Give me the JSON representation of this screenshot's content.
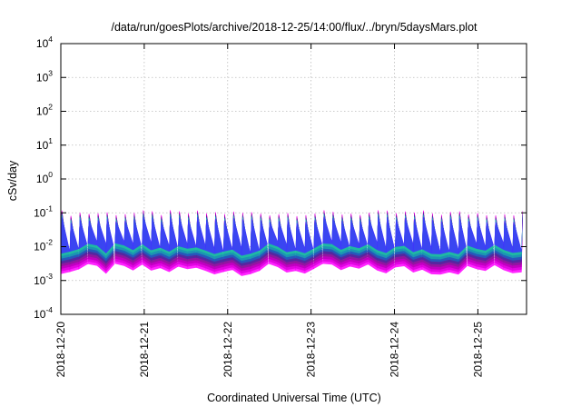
{
  "chart_data": {
    "type": "area",
    "title": "/data/run/goesPlots/archive/2018-12-25/14:00/flux/../bryn/5daysMars.plot",
    "xlabel": "Coordinated Universal Time (UTC)",
    "ylabel": "cSv/day",
    "yscale": "log",
    "ylim": [
      0.0001,
      10000
    ],
    "xlim": [
      "2018-12-20T00:00",
      "2018-12-25T14:00"
    ],
    "grid": true,
    "x_ticks": [
      "2018-12-20",
      "2018-12-21",
      "2018-12-22",
      "2018-12-23",
      "2018-12-24",
      "2018-12-25"
    ],
    "y_ticks": [
      {
        "value": 0.0001,
        "base": "10",
        "exp": "-4"
      },
      {
        "value": 0.001,
        "base": "10",
        "exp": "-3"
      },
      {
        "value": 0.01,
        "base": "10",
        "exp": "-2"
      },
      {
        "value": 0.1,
        "base": "10",
        "exp": "-1"
      },
      {
        "value": 1,
        "base": "10",
        "exp": "0"
      },
      {
        "value": 10,
        "base": "10",
        "exp": "1"
      },
      {
        "value": 100,
        "base": "10",
        "exp": "2"
      },
      {
        "value": 1000,
        "base": "10",
        "exp": "3"
      },
      {
        "value": 10000,
        "base": "10",
        "exp": "4"
      }
    ],
    "sawtooth_period_hours": 2.6,
    "band_min_range": [
      0.0015,
      0.0035
    ],
    "band_peak_range": [
      0.08,
      0.12
    ],
    "series_colors": [
      "#ff00ff",
      "#dd00dd",
      "#bb00bb",
      "#8a1a9a",
      "#4a2aa0",
      "#2060c0",
      "#1aa0b0",
      "#20c0a0",
      "#4030ff"
    ]
  }
}
